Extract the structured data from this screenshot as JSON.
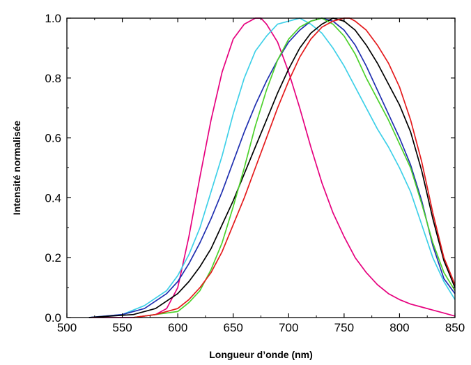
{
  "chart_data": {
    "type": "line",
    "title": "",
    "xlabel": "Longueur d’onde (nm)",
    "ylabel": "Intensité normalisée",
    "xlim": [
      500,
      850
    ],
    "ylim": [
      0,
      1.0
    ],
    "xticks": [
      500,
      550,
      600,
      650,
      700,
      750,
      800,
      850
    ],
    "yticks": [
      0.0,
      0.2,
      0.4,
      0.6,
      0.8,
      1.0
    ],
    "xtick_labels": [
      "500",
      "550",
      "600",
      "650",
      "700",
      "750",
      "800",
      "850"
    ],
    "ytick_labels": [
      "0.0",
      "0.2",
      "0.4",
      "0.6",
      "0.8",
      "1.0"
    ],
    "grid": false,
    "legend": "none",
    "series": [
      {
        "color": "#e6007e",
        "x": [
          520,
          560,
          580,
          590,
          600,
          610,
          620,
          630,
          640,
          650,
          660,
          670,
          675,
          680,
          690,
          700,
          710,
          720,
          730,
          740,
          750,
          760,
          770,
          780,
          790,
          800,
          810,
          820,
          830,
          840,
          850
        ],
        "y": [
          0.0,
          0.0,
          0.01,
          0.03,
          0.1,
          0.27,
          0.47,
          0.66,
          0.82,
          0.93,
          0.98,
          1.0,
          1.0,
          0.98,
          0.92,
          0.82,
          0.7,
          0.57,
          0.45,
          0.35,
          0.27,
          0.2,
          0.15,
          0.11,
          0.08,
          0.06,
          0.045,
          0.035,
          0.025,
          0.015,
          0.005
        ]
      },
      {
        "color": "#3ed0e8",
        "x": [
          520,
          550,
          570,
          590,
          600,
          610,
          620,
          630,
          640,
          650,
          660,
          670,
          680,
          690,
          700,
          710,
          720,
          730,
          740,
          750,
          760,
          770,
          780,
          790,
          800,
          810,
          820,
          830,
          840,
          850
        ],
        "y": [
          0.0,
          0.01,
          0.04,
          0.09,
          0.14,
          0.21,
          0.3,
          0.42,
          0.54,
          0.68,
          0.8,
          0.89,
          0.94,
          0.98,
          0.99,
          1.0,
          0.98,
          0.95,
          0.9,
          0.84,
          0.77,
          0.7,
          0.63,
          0.57,
          0.5,
          0.42,
          0.31,
          0.2,
          0.12,
          0.06
        ]
      },
      {
        "color": "#1f2fb0",
        "x": [
          520,
          550,
          570,
          590,
          600,
          610,
          620,
          630,
          640,
          650,
          660,
          670,
          680,
          690,
          700,
          710,
          720,
          730,
          740,
          750,
          760,
          770,
          780,
          790,
          800,
          810,
          820,
          830,
          840,
          850
        ],
        "y": [
          0.0,
          0.01,
          0.03,
          0.08,
          0.12,
          0.18,
          0.25,
          0.33,
          0.42,
          0.52,
          0.62,
          0.71,
          0.79,
          0.86,
          0.92,
          0.96,
          0.99,
          1.0,
          0.99,
          0.96,
          0.91,
          0.84,
          0.76,
          0.68,
          0.6,
          0.51,
          0.39,
          0.24,
          0.13,
          0.08
        ]
      },
      {
        "color": "#000000",
        "x": [
          520,
          560,
          580,
          600,
          610,
          620,
          630,
          640,
          650,
          660,
          670,
          680,
          690,
          700,
          710,
          720,
          730,
          740,
          750,
          760,
          770,
          780,
          790,
          800,
          810,
          820,
          830,
          840,
          850
        ],
        "y": [
          0.0,
          0.01,
          0.03,
          0.08,
          0.12,
          0.17,
          0.23,
          0.31,
          0.39,
          0.48,
          0.57,
          0.66,
          0.75,
          0.83,
          0.9,
          0.95,
          0.98,
          1.0,
          0.99,
          0.96,
          0.91,
          0.85,
          0.78,
          0.71,
          0.62,
          0.49,
          0.33,
          0.19,
          0.1
        ]
      },
      {
        "color": "#4cd12b",
        "x": [
          560,
          580,
          600,
          610,
          620,
          630,
          640,
          650,
          660,
          670,
          680,
          690,
          700,
          710,
          720,
          730,
          740,
          750,
          760,
          770,
          780,
          790,
          800,
          810,
          820,
          830,
          840,
          850
        ],
        "y": [
          0.0,
          0.01,
          0.02,
          0.05,
          0.09,
          0.16,
          0.25,
          0.37,
          0.5,
          0.64,
          0.76,
          0.86,
          0.93,
          0.97,
          0.99,
          1.0,
          0.98,
          0.94,
          0.88,
          0.8,
          0.73,
          0.66,
          0.58,
          0.5,
          0.38,
          0.25,
          0.15,
          0.09
        ]
      },
      {
        "color": "#e41a1c",
        "x": [
          560,
          580,
          600,
          610,
          620,
          630,
          640,
          650,
          660,
          670,
          680,
          690,
          700,
          710,
          720,
          730,
          740,
          750,
          755,
          760,
          770,
          780,
          790,
          800,
          810,
          820,
          830,
          840,
          850
        ],
        "y": [
          0.0,
          0.01,
          0.03,
          0.06,
          0.1,
          0.15,
          0.22,
          0.31,
          0.4,
          0.5,
          0.6,
          0.7,
          0.79,
          0.87,
          0.93,
          0.97,
          0.99,
          1.0,
          1.0,
          0.99,
          0.96,
          0.91,
          0.85,
          0.77,
          0.66,
          0.52,
          0.35,
          0.2,
          0.11
        ]
      }
    ]
  }
}
